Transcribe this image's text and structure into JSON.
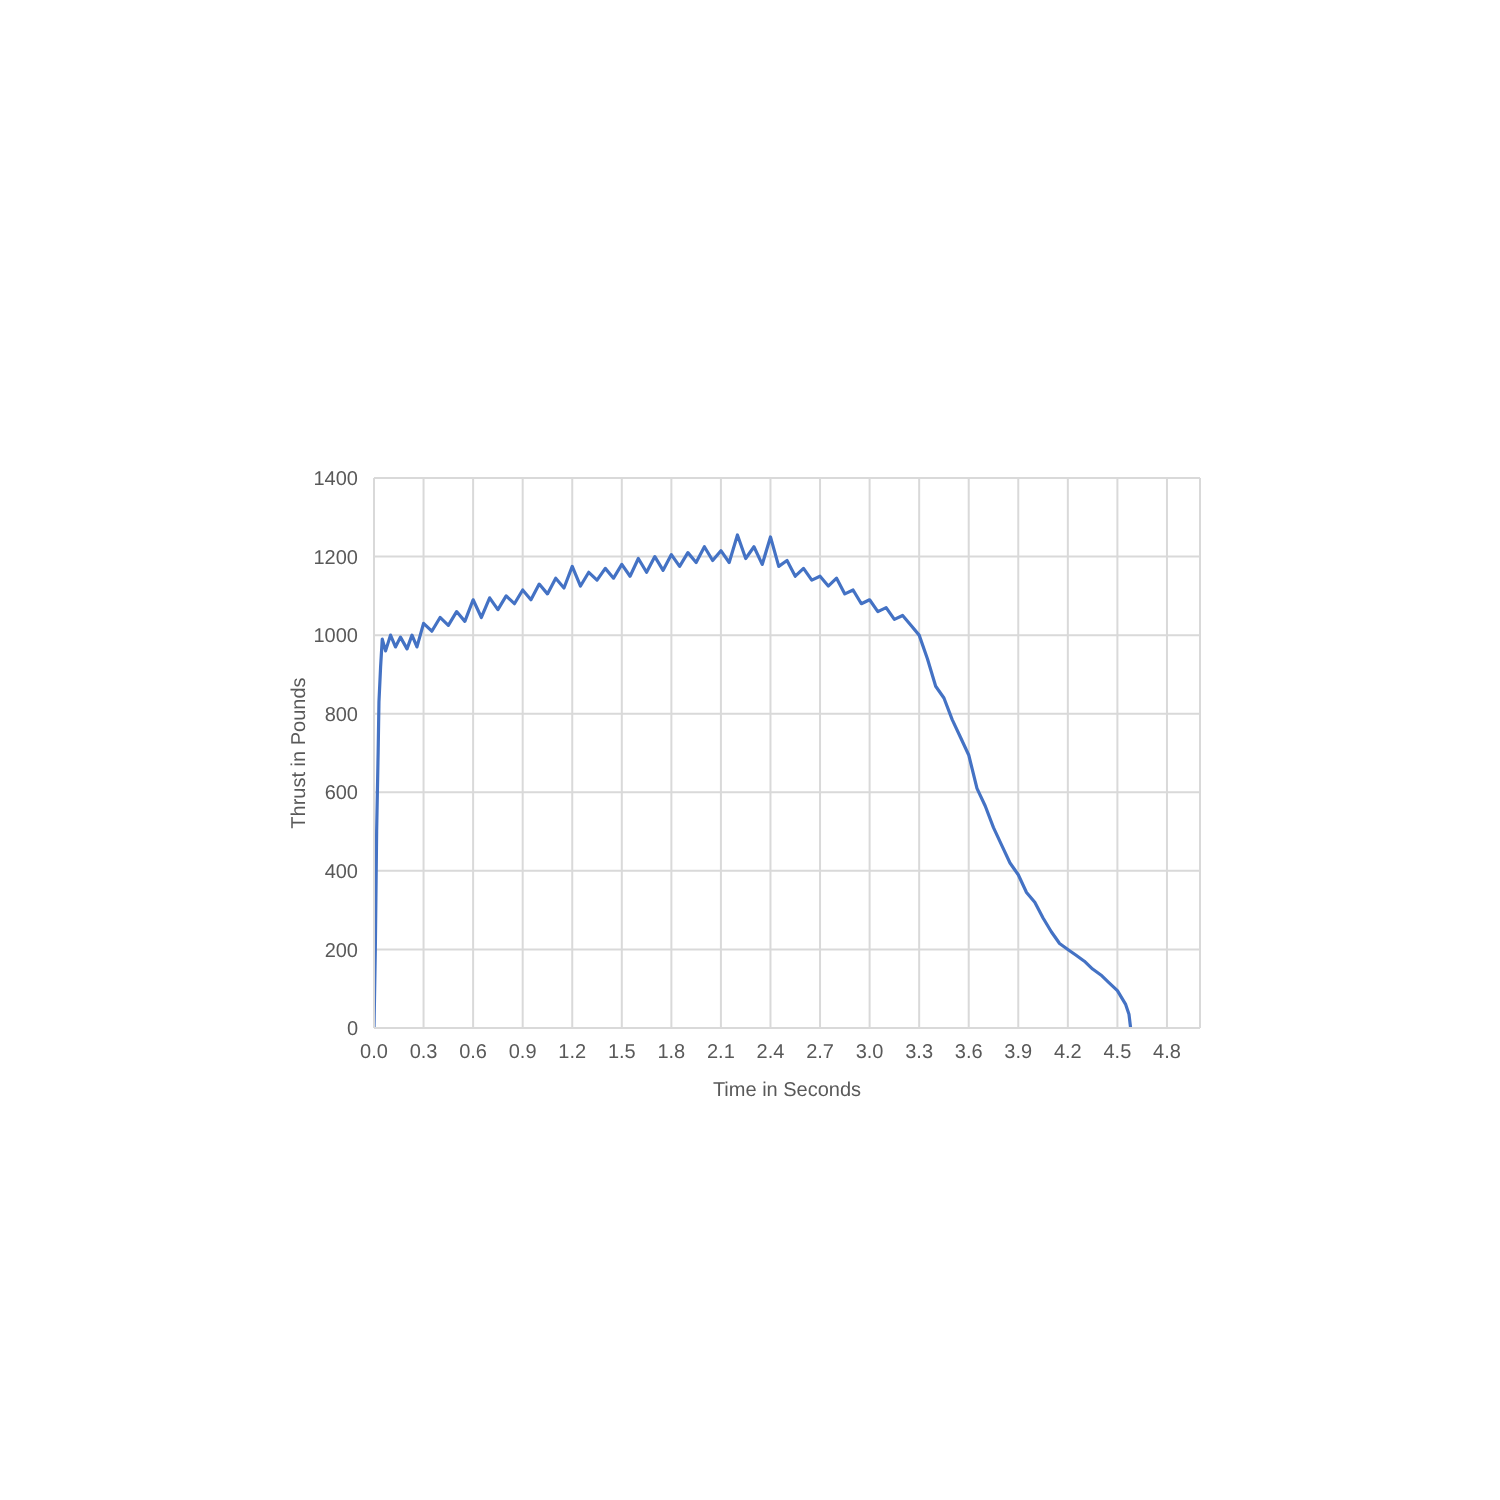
{
  "chart_data": {
    "type": "line",
    "xlabel": "Time in Seconds",
    "ylabel": "Thrust in Pounds",
    "x": [
      0,
      0.008,
      0.016,
      0.025,
      0.03,
      0.04,
      0.05,
      0.07,
      0.1,
      0.13,
      0.16,
      0.2,
      0.23,
      0.26,
      0.3,
      0.35,
      0.4,
      0.45,
      0.5,
      0.55,
      0.6,
      0.65,
      0.7,
      0.75,
      0.8,
      0.85,
      0.9,
      0.95,
      1.0,
      1.05,
      1.1,
      1.15,
      1.2,
      1.25,
      1.3,
      1.35,
      1.4,
      1.45,
      1.5,
      1.55,
      1.6,
      1.65,
      1.7,
      1.75,
      1.8,
      1.85,
      1.9,
      1.95,
      2.0,
      2.05,
      2.1,
      2.15,
      2.2,
      2.25,
      2.3,
      2.35,
      2.4,
      2.45,
      2.5,
      2.55,
      2.6,
      2.65,
      2.7,
      2.75,
      2.8,
      2.85,
      2.9,
      2.95,
      3.0,
      3.05,
      3.1,
      3.15,
      3.2,
      3.25,
      3.3,
      3.35,
      3.4,
      3.45,
      3.5,
      3.55,
      3.6,
      3.65,
      3.7,
      3.75,
      3.8,
      3.85,
      3.9,
      3.95,
      4.0,
      4.05,
      4.1,
      4.15,
      4.2,
      4.25,
      4.3,
      4.35,
      4.4,
      4.45,
      4.5,
      4.55,
      4.57,
      4.58
    ],
    "series": [
      {
        "color": "#4472c4",
        "values": [
          0,
          200,
          500,
          700,
          830,
          920,
          990,
          960,
          1000,
          970,
          995,
          965,
          1000,
          970,
          1030,
          1010,
          1045,
          1025,
          1060,
          1035,
          1090,
          1045,
          1095,
          1065,
          1100,
          1080,
          1115,
          1090,
          1130,
          1105,
          1145,
          1120,
          1175,
          1125,
          1160,
          1140,
          1170,
          1145,
          1180,
          1150,
          1195,
          1160,
          1200,
          1165,
          1205,
          1175,
          1210,
          1185,
          1225,
          1190,
          1215,
          1185,
          1255,
          1195,
          1225,
          1180,
          1250,
          1175,
          1190,
          1150,
          1170,
          1140,
          1150,
          1125,
          1145,
          1105,
          1115,
          1080,
          1090,
          1060,
          1070,
          1040,
          1050,
          1025,
          1000,
          940,
          870,
          840,
          785,
          740,
          695,
          610,
          565,
          510,
          465,
          420,
          390,
          345,
          320,
          280,
          245,
          215,
          200,
          185,
          170,
          150,
          135,
          115,
          95,
          60,
          35,
          0
        ]
      }
    ],
    "xlim": [
      0,
      5
    ],
    "xticks": [
      {
        "value": 0,
        "label": "0.0"
      },
      0.3,
      0.6,
      0.9,
      1.2,
      1.5,
      1.8,
      2.1,
      2.4,
      2.7,
      {
        "value": 3,
        "label": "3.0"
      },
      3.3,
      3.6,
      3.9,
      4.2,
      4.5,
      4.8
    ],
    "ylim": [
      0,
      1400
    ],
    "yticks": [
      0,
      200,
      400,
      600,
      800,
      1000,
      1200,
      1400
    ],
    "grid": true,
    "line_style": "solid"
  }
}
